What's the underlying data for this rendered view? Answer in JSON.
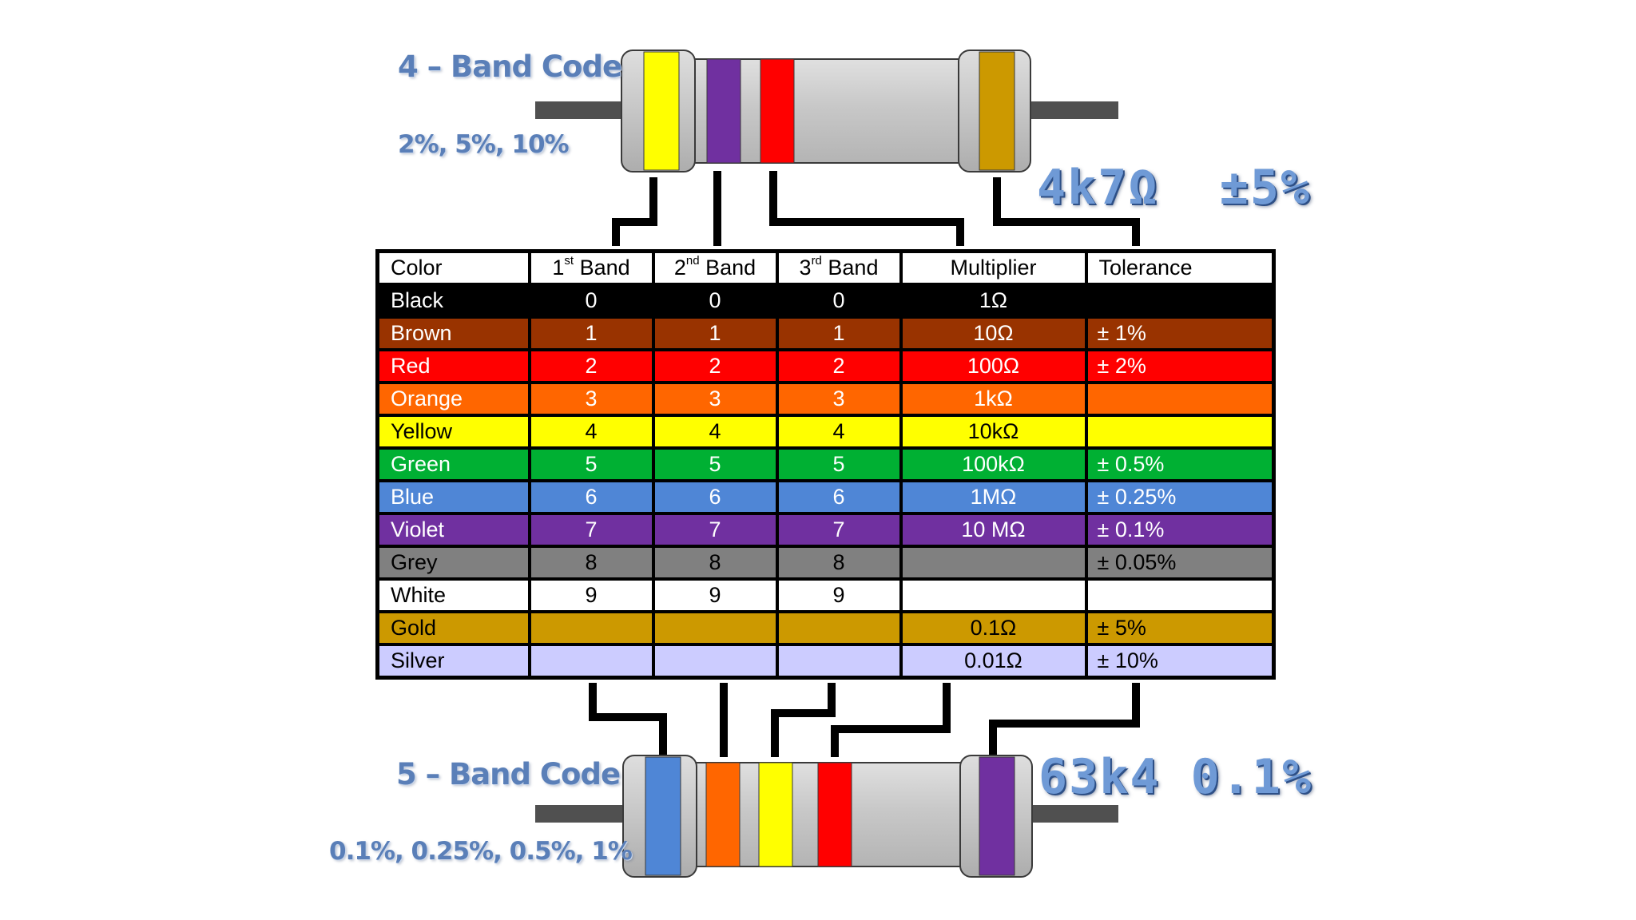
{
  "four_band": {
    "title": "4 – Band Code",
    "tolerances": "2%, 5%, 10%",
    "value": "4k7Ω  ±5%",
    "bands": [
      "yellow",
      "violet",
      "red",
      "gold"
    ]
  },
  "five_band": {
    "title": "5 – Band Code",
    "tolerances": "0.1%, 0.25%, 0.5%, 1%",
    "value": "63k4 0.1%",
    "bands": [
      "blue",
      "orange",
      "yellow",
      "red",
      "violet"
    ]
  },
  "table": {
    "headers": [
      {
        "base": "Color",
        "sup": ""
      },
      {
        "base": "1",
        "sup": "st",
        "tail": " Band"
      },
      {
        "base": "2",
        "sup": "nd",
        "tail": " Band"
      },
      {
        "base": "3",
        "sup": "rd",
        "tail": " Band"
      },
      {
        "base": "Multiplier",
        "sup": ""
      },
      {
        "base": "Tolerance",
        "sup": ""
      }
    ],
    "rows": [
      {
        "color": "Black",
        "b1": "0",
        "b2": "0",
        "b3": "0",
        "multiplier": "1Ω",
        "tolerance": "",
        "bg": "#000000",
        "fg": "#ffffff"
      },
      {
        "color": "Brown",
        "b1": "1",
        "b2": "1",
        "b3": "1",
        "multiplier": "10Ω",
        "tolerance": "± 1%",
        "bg": "#993300",
        "fg": "#ffffff"
      },
      {
        "color": "Red",
        "b1": "2",
        "b2": "2",
        "b3": "2",
        "multiplier": "100Ω",
        "tolerance": "± 2%",
        "bg": "#ff0000",
        "fg": "#ffffff"
      },
      {
        "color": "Orange",
        "b1": "3",
        "b2": "3",
        "b3": "3",
        "multiplier": "1kΩ",
        "tolerance": "",
        "bg": "#ff6600",
        "fg": "#ffffff"
      },
      {
        "color": "Yellow",
        "b1": "4",
        "b2": "4",
        "b3": "4",
        "multiplier": "10kΩ",
        "tolerance": "",
        "bg": "#ffff00",
        "fg": "#000000"
      },
      {
        "color": "Green",
        "b1": "5",
        "b2": "5",
        "b3": "5",
        "multiplier": "100kΩ",
        "tolerance": "± 0.5%",
        "bg": "#00b033",
        "fg": "#ffffff"
      },
      {
        "color": "Blue",
        "b1": "6",
        "b2": "6",
        "b3": "6",
        "multiplier": "1MΩ",
        "tolerance": "± 0.25%",
        "bg": "#4f86d6",
        "fg": "#ffffff"
      },
      {
        "color": "Violet",
        "b1": "7",
        "b2": "7",
        "b3": "7",
        "multiplier": "10 MΩ",
        "tolerance": "± 0.1%",
        "bg": "#7030a0",
        "fg": "#ffffff"
      },
      {
        "color": "Grey",
        "b1": "8",
        "b2": "8",
        "b3": "8",
        "multiplier": "",
        "tolerance": "± 0.05%",
        "bg": "#808080",
        "fg": "#000000"
      },
      {
        "color": "White",
        "b1": "9",
        "b2": "9",
        "b3": "9",
        "multiplier": "",
        "tolerance": "",
        "bg": "#ffffff",
        "fg": "#000000"
      },
      {
        "color": "Gold",
        "b1": "",
        "b2": "",
        "b3": "",
        "multiplier": "0.1Ω",
        "tolerance": "± 5%",
        "bg": "#cc9900",
        "fg": "#000000"
      },
      {
        "color": "Silver",
        "b1": "",
        "b2": "",
        "b3": "",
        "multiplier": "0.01Ω",
        "tolerance": "± 10%",
        "bg": "#ccccff",
        "fg": "#000000"
      }
    ]
  },
  "band_colors": {
    "yellow": "#ffff00",
    "violet": "#7030a0",
    "red": "#ff0000",
    "gold": "#cc9900",
    "blue": "#4f86d6",
    "orange": "#ff6600"
  }
}
